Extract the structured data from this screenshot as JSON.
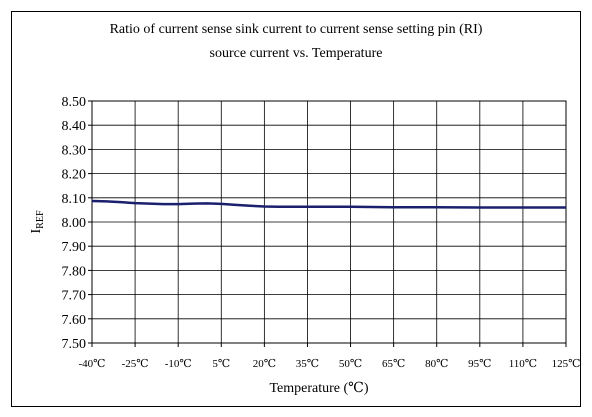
{
  "chart_data": {
    "type": "line",
    "title_lines": [
      "Ratio of current sense sink current to current sense setting pin (RI)",
      "source current vs. Temperature"
    ],
    "xlabel": "Temperature (℃)",
    "ylabel": "I",
    "ylabel_sub": "REF",
    "categories": [
      "-40℃",
      "-25℃",
      "-10℃",
      "5℃",
      "20℃",
      "35℃",
      "50℃",
      "65℃",
      "80℃",
      "95℃",
      "110℃",
      "125℃"
    ],
    "x": [
      -40,
      -25,
      -10,
      5,
      20,
      35,
      50,
      65,
      80,
      95,
      110,
      125
    ],
    "yticks": [
      "8.50",
      "8.40",
      "8.30",
      "8.20",
      "8.10",
      "8.00",
      "7.90",
      "7.80",
      "7.70",
      "7.60",
      "7.50"
    ],
    "ylim": [
      7.5,
      8.5
    ],
    "xlim": [
      -40,
      125
    ],
    "grid": true,
    "series": [
      {
        "color": "#1a1f6e",
        "x": [
          -40,
          -35,
          -30,
          -25,
          -20,
          -15,
          -10,
          -5,
          0,
          5,
          10,
          15,
          20,
          25,
          35,
          50,
          65,
          80,
          95,
          110,
          125
        ],
        "y": [
          8.087,
          8.085,
          8.082,
          8.078,
          8.076,
          8.074,
          8.074,
          8.076,
          8.077,
          8.075,
          8.071,
          8.067,
          8.064,
          8.063,
          8.063,
          8.063,
          8.061,
          8.061,
          8.06,
          8.06,
          8.06
        ]
      }
    ]
  }
}
